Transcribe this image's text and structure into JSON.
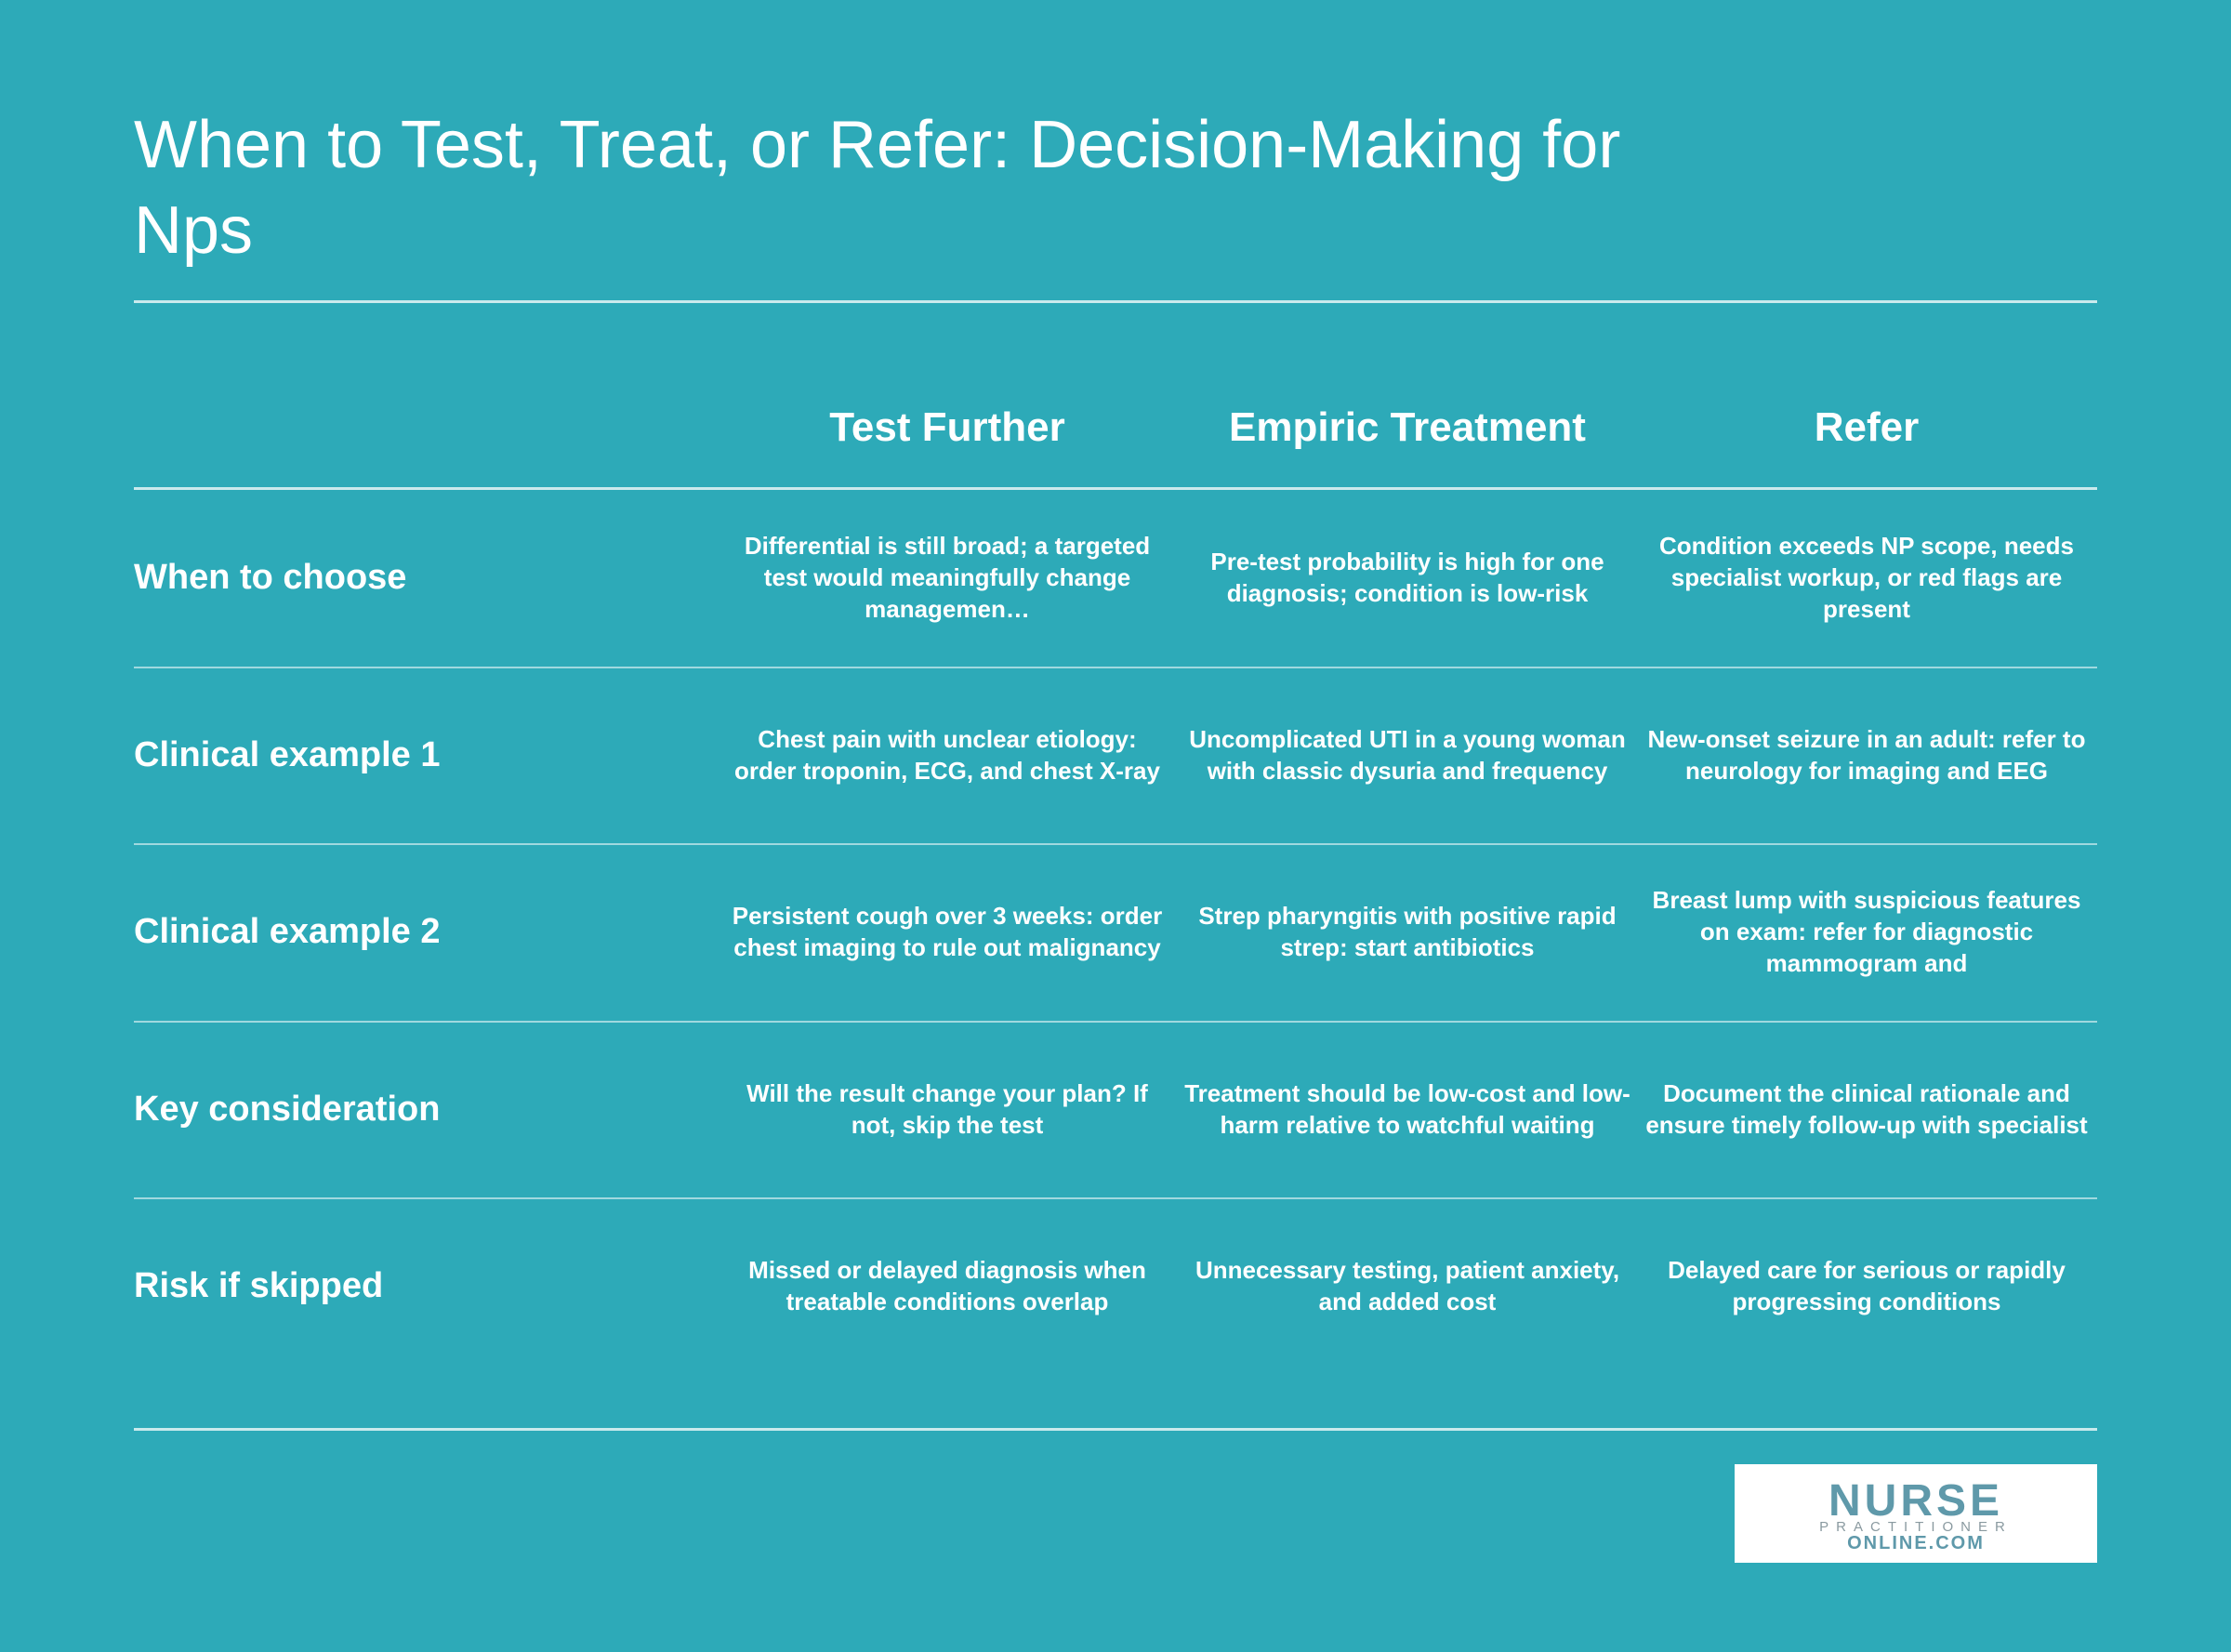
{
  "header": {
    "title": "When to Test, Treat, or Refer: Decision-Making for Nps"
  },
  "table": {
    "columns": [
      "Test Further",
      "Empiric Treatment",
      "Refer"
    ],
    "rows": [
      {
        "label": "When to choose",
        "cells": [
          "Differential is still broad; a targeted test would meaningfully change managemen…",
          "Pre-test probability is high for one diagnosis; condition is low-risk",
          "Condition exceeds NP scope, needs specialist workup, or red flags are present"
        ]
      },
      {
        "label": "Clinical example 1",
        "cells": [
          "Chest pain with unclear etiology: order troponin, ECG, and chest X-ray",
          "Uncomplicated UTI in a young woman with classic dysuria and frequency",
          "New-onset seizure in an adult: refer to neurology for imaging and EEG"
        ]
      },
      {
        "label": "Clinical example 2",
        "cells": [
          "Persistent cough over 3 weeks: order chest imaging to rule out malignancy",
          "Strep pharyngitis with positive rapid strep: start antibiotics",
          "Breast lump with suspicious features on exam: refer for diagnostic mammogram and"
        ]
      },
      {
        "label": "Key consideration",
        "cells": [
          "Will the result change your plan? If not, skip the test",
          "Treatment should be low-cost and low-harm relative to watchful waiting",
          "Document the clinical rationale and ensure timely follow-up with specialist"
        ]
      },
      {
        "label": "Risk if skipped",
        "cells": [
          "Missed or delayed diagnosis when treatable conditions overlap",
          "Unnecessary testing, patient anxiety, and added cost",
          "Delayed care for serious or rapidly progressing conditions"
        ]
      }
    ]
  },
  "logo": {
    "lines": [
      "NURSE",
      "PRACTITIONER",
      "ONLINE.COM"
    ]
  }
}
